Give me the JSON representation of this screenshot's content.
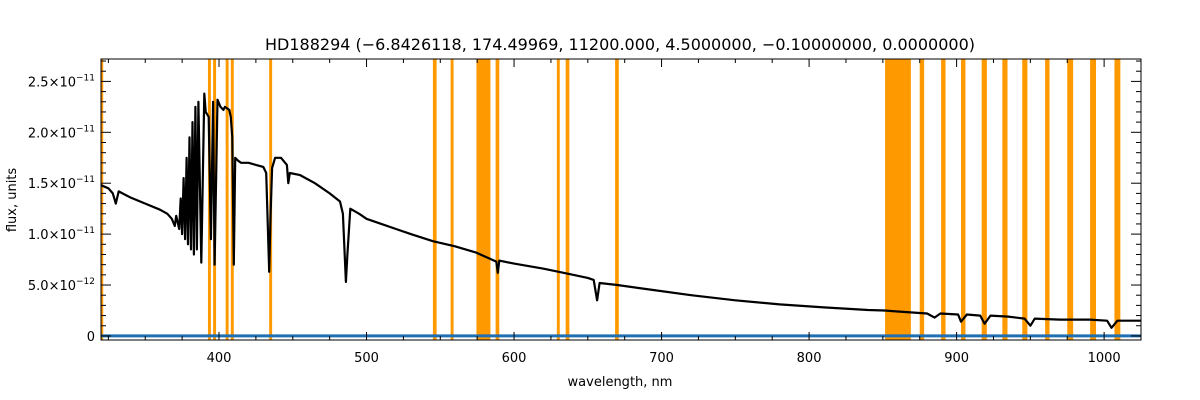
{
  "chart_data": {
    "type": "line",
    "title": "HD188294    (−6.8426118, 174.49969, 11200.000, 4.5000000, −0.10000000, 0.0000000)",
    "xlabel": "wavelength, nm",
    "ylabel": "flux, units",
    "xlim": [
      320,
      1025
    ],
    "ylim": [
      -4e-13,
      2.72e-11
    ],
    "x_ticks": [
      400,
      500,
      600,
      700,
      800,
      900,
      1000
    ],
    "y_ticks": [
      {
        "value": 0,
        "label": "0",
        "exp": ""
      },
      {
        "value": 5e-12,
        "label": "5.0×10",
        "exp": "−12"
      },
      {
        "value": 1e-11,
        "label": "1.0×10",
        "exp": "−11"
      },
      {
        "value": 1.5e-11,
        "label": "1.5×10",
        "exp": "−11"
      },
      {
        "value": 2e-11,
        "label": "2.0×10",
        "exp": "−11"
      },
      {
        "value": 2.5e-11,
        "label": "2.5×10",
        "exp": "−11"
      }
    ],
    "grid": false,
    "colors": {
      "spectrum": "#000000",
      "masks": "#ff9900",
      "baseline": "#1f6fb3"
    },
    "masked_regions": [
      [
        320,
        321.5
      ],
      [
        392.5,
        394.5
      ],
      [
        396,
        398
      ],
      [
        404.5,
        406.5
      ],
      [
        408,
        410
      ],
      [
        434,
        436
      ],
      [
        545,
        547.5
      ],
      [
        557,
        559
      ],
      [
        574.5,
        584
      ],
      [
        587.5,
        590
      ],
      [
        629,
        631
      ],
      [
        635,
        637.5
      ],
      [
        668.5,
        671
      ],
      [
        851.5,
        869
      ],
      [
        875,
        878
      ],
      [
        889.5,
        892.5
      ],
      [
        903,
        906
      ],
      [
        917,
        920.5
      ],
      [
        931,
        934.5
      ],
      [
        944.5,
        948
      ],
      [
        960,
        963
      ],
      [
        975,
        979
      ],
      [
        990.5,
        994.5
      ],
      [
        1007,
        1011
      ]
    ],
    "series": [
      {
        "values": [
          [
            320,
            1.48e-11
          ],
          [
            325,
            1.45e-11
          ],
          [
            328,
            1.4e-11
          ],
          [
            330,
            1.3e-11
          ],
          [
            332,
            1.42e-11
          ],
          [
            340,
            1.36e-11
          ],
          [
            350,
            1.3e-11
          ],
          [
            360,
            1.24e-11
          ],
          [
            365,
            1.2e-11
          ],
          [
            368,
            1.15e-11
          ],
          [
            370,
            1.08e-11
          ],
          [
            371,
            1.18e-11
          ],
          [
            373,
            1.05e-11
          ],
          [
            374,
            1.35e-11
          ],
          [
            375,
            1e-11
          ],
          [
            376,
            1.55e-11
          ],
          [
            377,
            9.5e-12
          ],
          [
            378,
            1.75e-11
          ],
          [
            379,
            9e-12
          ],
          [
            380,
            1.95e-11
          ],
          [
            381,
            8.5e-12
          ],
          [
            382,
            2.1e-11
          ],
          [
            383,
            8e-12
          ],
          [
            384,
            2.25e-11
          ],
          [
            385,
            8.5e-12
          ],
          [
            386,
            2.3e-11
          ],
          [
            388,
            7.2e-12
          ],
          [
            390,
            2.38e-11
          ],
          [
            391,
            2.2e-11
          ],
          [
            393,
            2.15e-11
          ],
          [
            394.5,
            9.5e-12
          ],
          [
            396,
            2.3e-11
          ],
          [
            397,
            7e-12
          ],
          [
            399,
            2.32e-11
          ],
          [
            401,
            2.25e-11
          ],
          [
            403,
            2.22e-11
          ],
          [
            404,
            2.25e-11
          ],
          [
            407,
            2.22e-11
          ],
          [
            408,
            2.15e-11
          ],
          [
            409,
            1.95e-11
          ],
          [
            410,
            7e-12
          ],
          [
            411,
            1.75e-11
          ],
          [
            413,
            1.72e-11
          ],
          [
            415,
            1.7e-11
          ],
          [
            420,
            1.7e-11
          ],
          [
            425,
            1.68e-11
          ],
          [
            430,
            1.66e-11
          ],
          [
            432,
            1.6e-11
          ],
          [
            434,
            6.3e-12
          ],
          [
            435,
            1.2e-11
          ],
          [
            436,
            1.65e-11
          ],
          [
            438,
            1.75e-11
          ],
          [
            442,
            1.75e-11
          ],
          [
            446,
            1.68e-11
          ],
          [
            447,
            1.5e-11
          ],
          [
            448,
            1.6e-11
          ],
          [
            455,
            1.58e-11
          ],
          [
            465,
            1.5e-11
          ],
          [
            475,
            1.4e-11
          ],
          [
            482,
            1.32e-11
          ],
          [
            484,
            1.2e-11
          ],
          [
            486,
            5.3e-12
          ],
          [
            487,
            8e-12
          ],
          [
            489,
            1.25e-11
          ],
          [
            495,
            1.2e-11
          ],
          [
            500,
            1.15e-11
          ],
          [
            510,
            1.1e-11
          ],
          [
            520,
            1.05e-11
          ],
          [
            530,
            1e-11
          ],
          [
            545,
            9.3e-12
          ],
          [
            560,
            8.8e-12
          ],
          [
            574,
            8.2e-12
          ],
          [
            585,
            7.5e-12
          ],
          [
            588,
            7.3e-12
          ],
          [
            589,
            6.2e-12
          ],
          [
            590,
            7.4e-12
          ],
          [
            600,
            7.1e-12
          ],
          [
            620,
            6.6e-12
          ],
          [
            640,
            6e-12
          ],
          [
            650,
            5.7e-12
          ],
          [
            654,
            5.5e-12
          ],
          [
            656.3,
            3.5e-12
          ],
          [
            658,
            5.2e-12
          ],
          [
            670,
            5e-12
          ],
          [
            690,
            4.6e-12
          ],
          [
            720,
            4e-12
          ],
          [
            750,
            3.5e-12
          ],
          [
            780,
            3.1e-12
          ],
          [
            810,
            2.8e-12
          ],
          [
            840,
            2.55e-12
          ],
          [
            851,
            2.5e-12
          ],
          [
            870,
            2.3e-12
          ],
          [
            880,
            2.2e-12
          ],
          [
            885,
            1.8e-12
          ],
          [
            889,
            2.2e-12
          ],
          [
            901,
            2.1e-12
          ],
          [
            903,
            1.4e-12
          ],
          [
            907,
            2.1e-12
          ],
          [
            916,
            2e-12
          ],
          [
            919,
            1.2e-12
          ],
          [
            923,
            2e-12
          ],
          [
            935,
            1.9e-12
          ],
          [
            946,
            1.7e-12
          ],
          [
            950,
            1e-12
          ],
          [
            953,
            1.7e-12
          ],
          [
            970,
            1.6e-12
          ],
          [
            990,
            1.6e-12
          ],
          [
            1002,
            1.5e-12
          ],
          [
            1005,
            8e-13
          ],
          [
            1009,
            1.5e-12
          ],
          [
            1025,
            1.5e-12
          ]
        ]
      },
      {
        "values": [
          [
            320,
            0
          ],
          [
            1025,
            0
          ]
        ]
      }
    ]
  }
}
